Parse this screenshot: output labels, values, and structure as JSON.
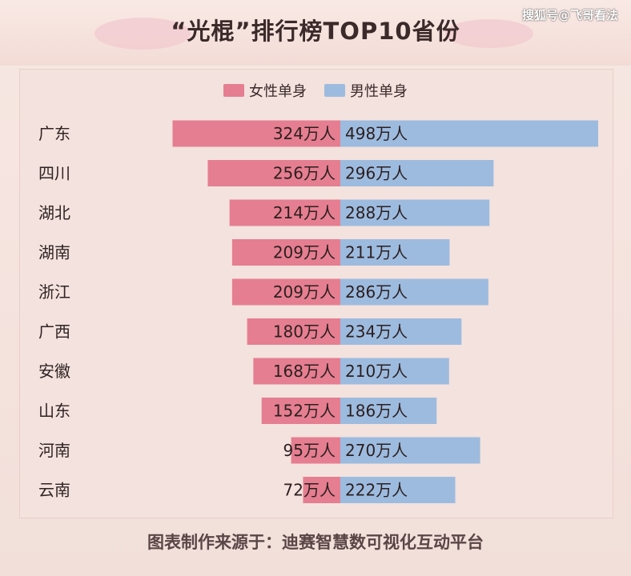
{
  "header": {
    "title": "“光棍”排行榜TOP10省份",
    "watermark": "搜狐号@飞哥看法"
  },
  "footer": {
    "source": "图表制作来源于：迪赛智慧数可视化互动平台"
  },
  "colors": {
    "female": "#e57e90",
    "male": "#9dbbdf",
    "background": "#f4e4df"
  },
  "chart_data": {
    "type": "bar",
    "orientation": "horizontal-diverging",
    "title": "“光棍”排行榜TOP10省份",
    "categories": [
      "广东",
      "四川",
      "湖北",
      "湖南",
      "浙江",
      "广西",
      "安徽",
      "山东",
      "河南",
      "云南"
    ],
    "unit_suffix": "万人",
    "series": [
      {
        "name": "女性单身",
        "values": [
          324,
          256,
          214,
          209,
          209,
          180,
          168,
          152,
          95,
          72
        ],
        "side": "left"
      },
      {
        "name": "男性单身",
        "values": [
          498,
          296,
          288,
          211,
          286,
          234,
          210,
          186,
          270,
          222
        ],
        "side": "right"
      }
    ],
    "legend_position": "top-center",
    "grid": false
  }
}
